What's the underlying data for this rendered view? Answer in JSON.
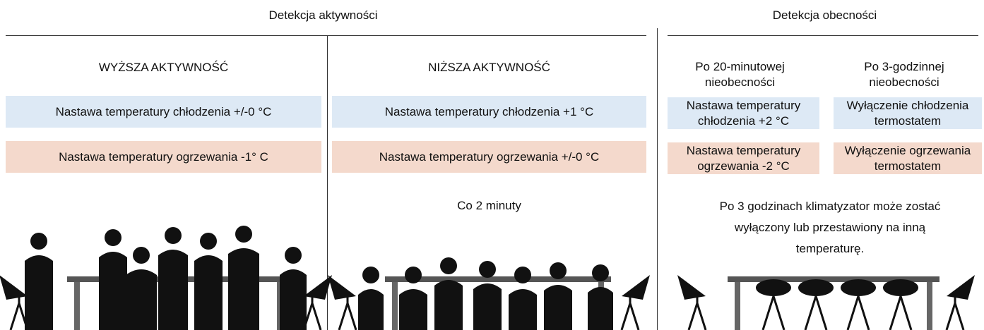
{
  "sections": [
    {
      "title": "Detekcja aktywności",
      "columns": [
        {
          "heading": "WYŻSZA AKTYWNOŚĆ",
          "cooling": "Nastawa temperatury chłodzenia +/-0 °C",
          "heating": "Nastawa temperatury ogrzewania -1° C"
        },
        {
          "heading": "NIŻSZA AKTYWNOŚĆ",
          "cooling": "Nastawa temperatury chłodzenia +1 °C",
          "heating": "Nastawa temperatury ogrzewania +/-0 °C",
          "note": "Co 2 minuty"
        }
      ]
    },
    {
      "title": "Detekcja obecności",
      "columns": [
        {
          "heading": "Po 20-minutowej nieobecności",
          "cooling": "Nastawa temperatury chłodzenia +2 °C",
          "heating": "Nastawa temperatury ogrzewania -2 °C"
        },
        {
          "heading": "Po 3-godzinnej nieobecności",
          "cooling": "Wyłączenie chłodzenia termostatem",
          "heating": "Wyłączenie ogrzewania termostatem"
        }
      ],
      "note": "Po 3 godzinach klimatyzator może zostać wyłączony lub przestawiony na inną temperaturę."
    }
  ]
}
